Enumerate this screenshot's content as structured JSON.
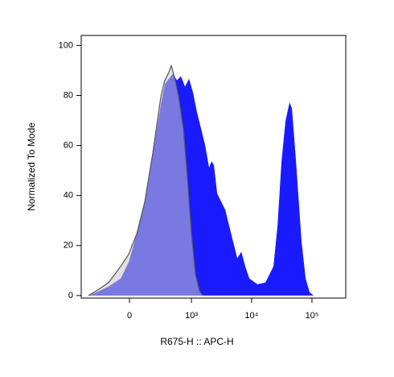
{
  "chart_data": {
    "type": "histogram-overlay",
    "x_label": "R675-H :: APC-H",
    "y_label": "Normalized To Mode",
    "xscale": "biexponential",
    "xlim": [
      -584,
      363000
    ],
    "ylim": [
      -1,
      104
    ],
    "xticks": [
      0,
      {
        "value": 1000,
        "label": "10³"
      },
      {
        "value": 10000,
        "label": "10⁴"
      },
      {
        "value": 100000,
        "label": "10⁵"
      }
    ],
    "yticks": [
      0,
      20,
      40,
      60,
      80,
      100
    ],
    "series": [
      {
        "color": "#1a1aff",
        "x": [
          -435,
          -308,
          -168,
          -65,
          -6,
          53,
          117,
          192,
          286,
          341,
          406,
          479,
          564,
          663,
          778,
          910,
          1064,
          1243,
          1451,
          1693,
          1976,
          2168,
          2377,
          2689,
          3654,
          4968,
          5795,
          6755,
          7866,
          9177,
          12464,
          16948,
          23028,
          26866,
          31331,
          36518,
          42579,
          46645,
          54416,
          67355,
          78584,
          91599,
          106818
        ],
        "values": [
          0,
          1.3,
          3.6,
          6.8,
          13.3,
          24.6,
          37.5,
          56.9,
          76.4,
          84.5,
          86.7,
          88.7,
          86.1,
          87.7,
          83.5,
          86.7,
          81.2,
          73.1,
          66.7,
          60.2,
          51.1,
          53.7,
          52.1,
          40.8,
          34.3,
          21.4,
          14.9,
          17.5,
          11.7,
          6.8,
          4.5,
          5.2,
          11.7,
          27.8,
          53.7,
          69.9,
          77.3,
          74.8,
          53.7,
          21.4,
          6.8,
          1.3,
          0
        ]
      },
      {
        "color": "#c8c8c8",
        "line_color": "#555555",
        "x": [
          -435,
          -308,
          -168,
          -65,
          -6,
          53,
          117,
          192,
          286,
          341,
          406,
          449,
          528,
          603,
          730,
          855,
          1001,
          1169,
          1365,
          1543
        ],
        "values": [
          0,
          1.9,
          5.2,
          11.7,
          16.5,
          24.6,
          37.5,
          57,
          79.6,
          86.1,
          89.3,
          91.9,
          86.1,
          79.6,
          66.7,
          47.2,
          24.6,
          8.4,
          1.9,
          0
        ]
      }
    ]
  }
}
